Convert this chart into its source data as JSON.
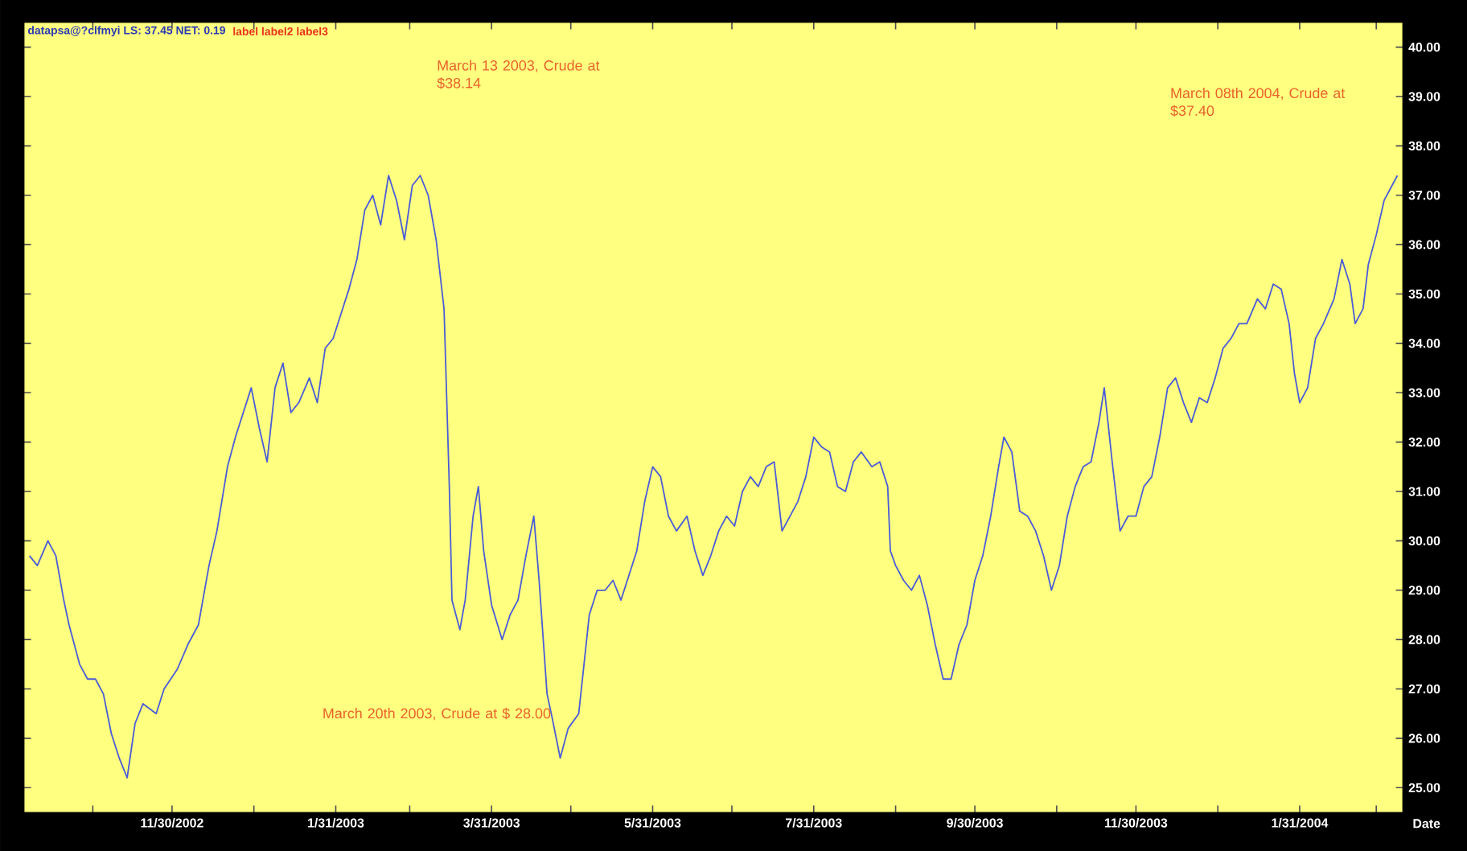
{
  "chart_data": {
    "type": "line",
    "title": "datapsa@?clfmyi LS: 37.45 NET: 0.19",
    "subtitle": "label label2 label3",
    "xlabel": "Date",
    "annotations": [
      "March 13 2003, Crude at $38.14",
      "March 20th 2003, Crude at $ 28.00",
      "March 08th 2004, Crude at $37.40"
    ],
    "xlim": [
      "2002-10-05",
      "2004-03-10"
    ],
    "xticks": [
      {
        "value": "2002-10-31",
        "label": null
      },
      {
        "value": "2002-11-30",
        "label": "11/30/2002"
      },
      {
        "value": "2002-12-31",
        "label": null
      },
      {
        "value": "2003-01-31",
        "label": "1/31/2003"
      },
      {
        "value": "2003-02-28",
        "label": null
      },
      {
        "value": "2003-03-31",
        "label": "3/31/2003"
      },
      {
        "value": "2003-04-30",
        "label": null
      },
      {
        "value": "2003-05-31",
        "label": "5/31/2003"
      },
      {
        "value": "2003-06-30",
        "label": null
      },
      {
        "value": "2003-07-31",
        "label": "7/31/2003"
      },
      {
        "value": "2003-08-31",
        "label": null
      },
      {
        "value": "2003-09-30",
        "label": "9/30/2003"
      },
      {
        "value": "2003-10-31",
        "label": null
      },
      {
        "value": "2003-11-30",
        "label": "11/30/2003"
      },
      {
        "value": "2003-12-31",
        "label": null
      },
      {
        "value": "2004-01-31",
        "label": "1/31/2004"
      },
      {
        "value": "2004-02-29",
        "label": null
      }
    ],
    "ylim": [
      24.5,
      40.5
    ],
    "yticks": [
      {
        "value": 25,
        "label": "25.00"
      },
      {
        "value": 26,
        "label": "26.00"
      },
      {
        "value": 27,
        "label": "27.00"
      },
      {
        "value": 28,
        "label": "28.00"
      },
      {
        "value": 29,
        "label": "29.00"
      },
      {
        "value": 30,
        "label": "30.00"
      },
      {
        "value": 31,
        "label": "31.00"
      },
      {
        "value": 32,
        "label": "32.00"
      },
      {
        "value": 33,
        "label": "33.00"
      },
      {
        "value": 34,
        "label": "34.00"
      },
      {
        "value": 35,
        "label": "35.00"
      },
      {
        "value": 36,
        "label": "36.00"
      },
      {
        "value": 37,
        "label": "37.00"
      },
      {
        "value": 38,
        "label": "38.00"
      },
      {
        "value": 39,
        "label": "39.00"
      },
      {
        "value": 40,
        "label": "40.00"
      }
    ],
    "x": [
      "2002-10-07",
      "2002-10-10",
      "2002-10-14",
      "2002-10-17",
      "2002-10-20",
      "2002-10-22",
      "2002-10-26",
      "2002-10-29",
      "2002-11-01",
      "2002-11-04",
      "2002-11-07",
      "2002-11-10",
      "2002-11-13",
      "2002-11-16",
      "2002-11-19",
      "2002-11-24",
      "2002-11-27",
      "2002-12-02",
      "2002-12-06",
      "2002-12-10",
      "2002-12-14",
      "2002-12-17",
      "2002-12-21",
      "2002-12-24",
      "2002-12-27",
      "2002-12-30",
      "2003-01-02",
      "2003-01-05",
      "2003-01-08",
      "2003-01-11",
      "2003-01-14",
      "2003-01-17",
      "2003-01-21",
      "2003-01-24",
      "2003-01-27",
      "2003-01-30",
      "2003-02-02",
      "2003-02-05",
      "2003-02-08",
      "2003-02-11",
      "2003-02-14",
      "2003-02-17",
      "2003-02-20",
      "2003-02-23",
      "2003-02-26",
      "2003-03-01",
      "2003-03-04",
      "2003-03-07",
      "2003-03-10",
      "2003-03-13",
      "2003-03-15",
      "2003-03-16",
      "2003-03-19",
      "2003-03-21",
      "2003-03-24",
      "2003-03-26",
      "2003-03-28",
      "2003-03-31",
      "2003-04-04",
      "2003-04-07",
      "2003-04-10",
      "2003-04-13",
      "2003-04-16",
      "2003-04-18",
      "2003-04-21",
      "2003-04-23",
      "2003-04-26",
      "2003-04-29",
      "2003-05-03",
      "2003-05-05",
      "2003-05-07",
      "2003-05-10",
      "2003-05-13",
      "2003-05-16",
      "2003-05-19",
      "2003-05-22",
      "2003-05-25",
      "2003-05-28",
      "2003-05-31",
      "2003-06-03",
      "2003-06-06",
      "2003-06-09",
      "2003-06-13",
      "2003-06-16",
      "2003-06-19",
      "2003-06-22",
      "2003-06-25",
      "2003-06-28",
      "2003-07-01",
      "2003-07-04",
      "2003-07-07",
      "2003-07-10",
      "2003-07-13",
      "2003-07-16",
      "2003-07-19",
      "2003-07-22",
      "2003-07-25",
      "2003-07-28",
      "2003-07-31",
      "2003-08-03",
      "2003-08-06",
      "2003-08-09",
      "2003-08-12",
      "2003-08-15",
      "2003-08-18",
      "2003-08-22",
      "2003-08-25",
      "2003-08-28",
      "2003-08-29",
      "2003-08-31",
      "2003-09-03",
      "2003-09-06",
      "2003-09-09",
      "2003-09-12",
      "2003-09-15",
      "2003-09-18",
      "2003-09-21",
      "2003-09-24",
      "2003-09-27",
      "2003-09-30",
      "2003-10-03",
      "2003-10-06",
      "2003-10-09",
      "2003-10-11",
      "2003-10-14",
      "2003-10-17",
      "2003-10-20",
      "2003-10-23",
      "2003-10-26",
      "2003-10-29",
      "2003-11-01",
      "2003-11-04",
      "2003-11-07",
      "2003-11-10",
      "2003-11-13",
      "2003-11-16",
      "2003-11-18",
      "2003-11-21",
      "2003-11-24",
      "2003-11-27",
      "2003-11-30",
      "2003-12-03",
      "2003-12-06",
      "2003-12-09",
      "2003-12-12",
      "2003-12-15",
      "2003-12-18",
      "2003-12-21",
      "2003-12-24",
      "2003-12-27",
      "2003-12-30",
      "2004-01-02",
      "2004-01-05",
      "2004-01-08",
      "2004-01-11",
      "2004-01-15",
      "2004-01-18",
      "2004-01-21",
      "2004-01-24",
      "2004-01-27",
      "2004-01-29",
      "2004-01-31",
      "2004-02-03",
      "2004-02-06",
      "2004-02-09",
      "2004-02-13",
      "2004-02-16",
      "2004-02-19",
      "2004-02-21",
      "2004-02-24",
      "2004-02-26",
      "2004-02-29",
      "2004-03-03",
      "2004-03-06",
      "2004-03-08"
    ],
    "series": [
      {
        "color": "#4a5cd6",
        "values": [
          29.7,
          29.5,
          30.0,
          29.7,
          28.8,
          28.3,
          27.5,
          27.2,
          27.2,
          26.9,
          26.1,
          25.6,
          25.2,
          26.3,
          26.7,
          26.5,
          27.0,
          27.4,
          27.9,
          28.3,
          29.5,
          30.2,
          31.5,
          32.1,
          32.6,
          33.1,
          32.3,
          31.6,
          33.1,
          33.6,
          32.6,
          32.8,
          33.3,
          32.8,
          33.9,
          34.1,
          34.6,
          35.1,
          35.7,
          36.7,
          37.0,
          36.4,
          37.4,
          36.9,
          36.1,
          37.2,
          37.4,
          37.0,
          36.1,
          34.7,
          31.1,
          28.8,
          28.2,
          28.8,
          30.5,
          31.1,
          29.8,
          28.7,
          28.0,
          28.5,
          28.8,
          29.7,
          30.5,
          29.2,
          26.9,
          26.4,
          25.6,
          26.2,
          26.5,
          27.5,
          28.5,
          29.0,
          29.0,
          29.2,
          28.8,
          29.3,
          29.8,
          30.8,
          31.5,
          31.3,
          30.5,
          30.2,
          30.5,
          29.8,
          29.3,
          29.7,
          30.2,
          30.5,
          30.3,
          31.0,
          31.3,
          31.1,
          31.5,
          31.6,
          30.2,
          30.5,
          30.8,
          31.3,
          32.1,
          31.9,
          31.8,
          31.1,
          31.0,
          31.6,
          31.8,
          31.5,
          31.6,
          31.1,
          29.8,
          29.5,
          29.2,
          29.0,
          29.3,
          28.7,
          27.9,
          27.2,
          27.2,
          27.9,
          28.3,
          29.2,
          29.7,
          30.5,
          31.5,
          32.1,
          31.8,
          30.6,
          30.5,
          30.2,
          29.7,
          29.0,
          29.5,
          30.5,
          31.1,
          31.5,
          31.6,
          32.4,
          33.1,
          31.6,
          30.2,
          30.5,
          30.5,
          31.1,
          31.3,
          32.1,
          33.1,
          33.3,
          32.8,
          32.4,
          32.9,
          32.8,
          33.3,
          33.9,
          34.1,
          34.4,
          34.4,
          34.9,
          34.7,
          35.2,
          35.1,
          34.4,
          33.4,
          32.8,
          33.1,
          34.1,
          34.4,
          34.9,
          35.7,
          35.2,
          34.4,
          34.7,
          35.6,
          36.2,
          36.9,
          37.2,
          37.4
        ]
      }
    ]
  }
}
